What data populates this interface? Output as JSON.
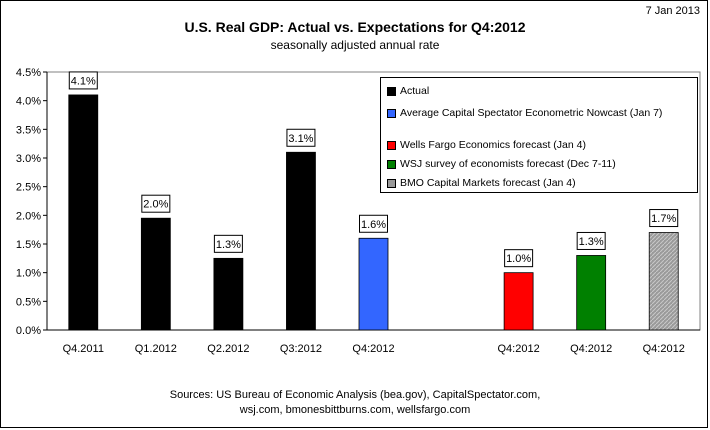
{
  "header": {
    "date": "7 Jan 2013",
    "title": "U.S. Real GDP: Actual vs. Expectations for Q4:2012",
    "subtitle": "seasonally adjusted annual rate"
  },
  "footer": {
    "source_line1": "Sources: US Bureau of Economic Analysis (bea.gov), CapitalSpectator.com,",
    "source_line2": "wsj.com, bmonesbittburns.com, wellsfargo.com"
  },
  "legend": {
    "items": [
      {
        "label": "Actual",
        "color": "#000000"
      },
      {
        "label": "Average Capital Spectator Econometric Nowcast (Jan 7)",
        "color": "#3366ff"
      },
      {
        "label": "Wells Fargo Economics forecast (Jan 4)",
        "color": "#ff0000"
      },
      {
        "label": "WSJ survey of economists forecast (Dec 7-11)",
        "color": "#008000"
      },
      {
        "label": "BMO Capital Markets forecast (Jan 4)",
        "color": "#999999"
      }
    ]
  },
  "chart_data": {
    "type": "bar",
    "title": "U.S. Real GDP: Actual vs. Expectations for Q4:2012",
    "subtitle": "seasonally adjusted annual rate",
    "ylim": [
      0,
      4.5
    ],
    "ytick_labels": [
      "0.0%",
      "0.5%",
      "1.0%",
      "1.5%",
      "2.0%",
      "2.5%",
      "3.0%",
      "3.5%",
      "4.0%",
      "4.5%"
    ],
    "grid": false,
    "legend_position": "top-right",
    "bars": [
      {
        "category": "Q4.2011",
        "value": 4.1,
        "label": "4.1%",
        "series": "Actual",
        "color": "#000000"
      },
      {
        "category": "Q1.2012",
        "value": 1.95,
        "label": "2.0%",
        "series": "Actual",
        "color": "#000000"
      },
      {
        "category": "Q2.2012",
        "value": 1.25,
        "label": "1.3%",
        "series": "Actual",
        "color": "#000000"
      },
      {
        "category": "Q3:2012",
        "value": 3.1,
        "label": "3.1%",
        "series": "Actual",
        "color": "#000000"
      },
      {
        "category": "Q4:2012",
        "value": 1.6,
        "label": "1.6%",
        "series": "Average Capital Spectator Econometric Nowcast (Jan 7)",
        "color": "#3366ff"
      },
      {
        "category": "",
        "value": null,
        "label": "",
        "series": "",
        "color": ""
      },
      {
        "category": "Q4:2012",
        "value": 1.0,
        "label": "1.0%",
        "series": "Wells Fargo Economics forecast (Jan 4)",
        "color": "#ff0000"
      },
      {
        "category": "Q4:2012",
        "value": 1.3,
        "label": "1.3%",
        "series": "WSJ survey of economists forecast (Dec 7-11)",
        "color": "#008000"
      },
      {
        "category": "Q4:2012",
        "value": 1.7,
        "label": "1.7%",
        "series": "BMO Capital Markets forecast (Jan 4)",
        "color": "#999999"
      }
    ]
  }
}
